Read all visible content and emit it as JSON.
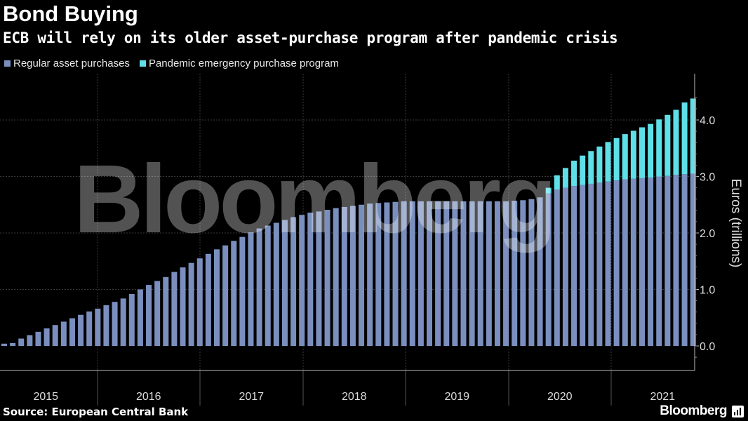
{
  "header": {
    "title": "Bond Buying",
    "subtitle": "ECB will rely on its older asset-purchase program after pandemic crisis"
  },
  "legend": [
    {
      "label": "Regular asset purchases",
      "color": "#7b8fbf"
    },
    {
      "label": "Pandemic emergency purchase program",
      "color": "#5fe0e8"
    }
  ],
  "footer": {
    "source": "Source: European Central Bank",
    "brand": "Bloomberg"
  },
  "watermark": "Bloomberg",
  "chart_data": {
    "type": "bar",
    "stacked": true,
    "ylabel": "Euros (trillions)",
    "ylim": [
      -0.2,
      4.8
    ],
    "yticks": [
      0.0,
      1.0,
      2.0,
      3.0,
      4.0
    ],
    "ytick_labels": [
      "0.0",
      "1.0",
      "2.0",
      "3.0",
      "4.0"
    ],
    "year_labels": [
      "2015",
      "2016",
      "2017",
      "2018",
      "2019",
      "2020",
      "2021"
    ],
    "x_start": "2015-01",
    "series": [
      {
        "name": "Regular asset purchases",
        "color": "#7b8fbf",
        "values": [
          0.04,
          0.05,
          0.13,
          0.19,
          0.25,
          0.31,
          0.37,
          0.43,
          0.49,
          0.55,
          0.61,
          0.66,
          0.72,
          0.78,
          0.84,
          0.92,
          1.0,
          1.08,
          1.15,
          1.22,
          1.31,
          1.39,
          1.47,
          1.55,
          1.63,
          1.71,
          1.78,
          1.86,
          1.93,
          2.01,
          2.08,
          2.13,
          2.18,
          2.23,
          2.28,
          2.32,
          2.36,
          2.38,
          2.41,
          2.44,
          2.46,
          2.48,
          2.5,
          2.52,
          2.53,
          2.54,
          2.55,
          2.56,
          2.56,
          2.56,
          2.56,
          2.56,
          2.56,
          2.56,
          2.56,
          2.56,
          2.56,
          2.56,
          2.56,
          2.56,
          2.57,
          2.58,
          2.6,
          2.63,
          2.7,
          2.77,
          2.8,
          2.83,
          2.85,
          2.87,
          2.89,
          2.91,
          2.93,
          2.95,
          2.96,
          2.97,
          2.98,
          3.0,
          3.01,
          3.03,
          3.04,
          3.05
        ]
      },
      {
        "name": "Pandemic emergency purchase program",
        "color": "#5fe0e8",
        "values": [
          0,
          0,
          0,
          0,
          0,
          0,
          0,
          0,
          0,
          0,
          0,
          0,
          0,
          0,
          0,
          0,
          0,
          0,
          0,
          0,
          0,
          0,
          0,
          0,
          0,
          0,
          0,
          0,
          0,
          0,
          0,
          0,
          0,
          0,
          0,
          0,
          0,
          0,
          0,
          0,
          0,
          0,
          0,
          0,
          0,
          0,
          0,
          0,
          0,
          0,
          0,
          0,
          0,
          0,
          0,
          0,
          0,
          0,
          0,
          0,
          0,
          0,
          0,
          0,
          0.1,
          0.25,
          0.35,
          0.45,
          0.52,
          0.58,
          0.64,
          0.7,
          0.75,
          0.8,
          0.85,
          0.9,
          0.95,
          1.01,
          1.08,
          1.15,
          1.27,
          1.33
        ]
      }
    ],
    "grid": true,
    "legend_position": "top-left"
  }
}
